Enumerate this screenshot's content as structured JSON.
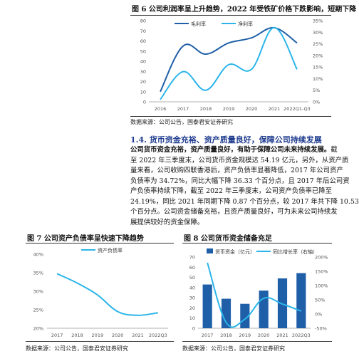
{
  "figure6": {
    "title": "图 6 公司利润率呈上升趋势，2022 年受铁矿价格下跌影响，短期下降",
    "source": "数据来源：公司公告，国泰君安证券研究",
    "chart_data": {
      "type": "line",
      "categories": [
        "2016",
        "2017",
        "2018",
        "2019",
        "2020",
        "2021",
        "2022Q1-Q3"
      ],
      "series": [
        {
          "name": "毛利率",
          "axis": "left",
          "values": [
            10,
            55,
            47,
            58,
            63,
            73,
            58
          ],
          "color": "#1f5fa8"
        },
        {
          "name": "净利率",
          "axis": "right",
          "values": [
            1,
            13,
            5,
            16,
            14,
            32,
            14
          ],
          "color": "#2bb5ea"
        }
      ],
      "left_axis": {
        "min": 0,
        "max": 80,
        "ticks": [
          "0",
          "10",
          "20",
          "30",
          "40",
          "50",
          "60",
          "70",
          "80"
        ]
      },
      "right_axis": {
        "min": 0,
        "max": 35,
        "ticks": [
          "0%",
          "5%",
          "10%",
          "15%",
          "20%",
          "25%",
          "30%",
          "35%"
        ]
      }
    }
  },
  "section": {
    "heading": "1.4. 货币资金充裕、资产质量良好，保障公司持续发展",
    "lead": "公司货币资金充裕，资产质量良好，有助于保障公司未来持续发展。",
    "lines": [
      "截",
      "至 2022 年三季度末，公司货币资金规模达 54.19 亿元，另外，从资产质",
      "量来看，公司收购四联香港后，资产负债率显著降低，2017 年公司资产",
      "负债率为 34.72%，同比大幅下降 36.33 个百分点，且 2017 年后公司资",
      "产负债率持续下降，截至 2022 年三季度末，公司资产负债率已降至",
      "24.19%，同比 2021 年同期下降 0.87 个百分点，较 2017 年共下降 10.53",
      "个百分点。公司资金储备充裕，且资产质量良好，可为未来公司持续发",
      "展提供较好的资金保障。"
    ]
  },
  "figure7": {
    "title": "图 7 公司资产负债率呈快速下降趋势",
    "source": "数据来源：公司公告，国泰君安证券研究",
    "chart_data": {
      "type": "line",
      "categories": [
        "2017",
        "2018",
        "2019",
        "2020",
        "2021",
        "2022Q3"
      ],
      "series": [
        {
          "name": "资产负债率",
          "values": [
            34.72,
            32.2,
            29.0,
            24.5,
            23.5,
            24.19
          ],
          "color": "#2bb5ea"
        }
      ],
      "y_axis": {
        "min": 20,
        "max": 40,
        "ticks": [
          "20%",
          "25%",
          "30%",
          "35%",
          "40%"
        ]
      }
    }
  },
  "figure8": {
    "title": "图 8 公司货币资金储备充足",
    "source": "数据来源：公司公告，国泰君安证券研究",
    "chart_data": {
      "type": "bar",
      "categories": [
        "2017",
        "2018",
        "2019",
        "2020",
        "2021",
        "2022Q3"
      ],
      "series": [
        {
          "name": "货币资金（亿元）",
          "type": "bar",
          "axis": "left",
          "values": [
            43,
            29,
            24,
            37,
            49,
            54.19
          ],
          "color": "#1f5fa8"
        },
        {
          "name": "同比增长率（右轴）",
          "type": "line",
          "axis": "right",
          "values": [
            180,
            -30,
            -18,
            55,
            35,
            10
          ],
          "color": "#2bb5ea"
        }
      ],
      "left_axis": {
        "min": 0,
        "max": 70,
        "ticks": [
          "0",
          "10",
          "20",
          "30",
          "40",
          "50",
          "60",
          "70"
        ]
      },
      "right_axis": {
        "min": -50,
        "max": 200,
        "ticks": [
          "-50%",
          "0%",
          "50%",
          "100%",
          "150%",
          "200%"
        ]
      }
    }
  }
}
